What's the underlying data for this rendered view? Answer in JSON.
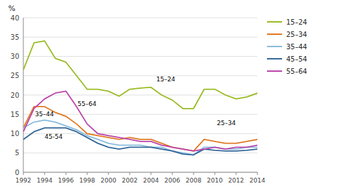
{
  "chart_data": {
    "type": "line",
    "y_label": "%",
    "x": [
      1992,
      1993,
      1994,
      1995,
      1996,
      1997,
      1998,
      1999,
      2000,
      2001,
      2002,
      2003,
      2004,
      2005,
      2006,
      2007,
      2008,
      2009,
      2010,
      2011,
      2012,
      2013,
      2014
    ],
    "series": [
      {
        "name": "15–24",
        "color": "#99BB22",
        "values": [
          26.5,
          33.5,
          34.0,
          29.5,
          28.5,
          25.0,
          21.5,
          21.5,
          21.0,
          19.7,
          21.5,
          21.8,
          22.0,
          20.0,
          18.7,
          16.5,
          16.5,
          21.5,
          21.5,
          20.0,
          19.0,
          19.5,
          20.5
        ]
      },
      {
        "name": "25–34",
        "color": "#E07820",
        "values": [
          11.5,
          17.0,
          17.0,
          15.5,
          14.5,
          12.5,
          10.0,
          9.5,
          9.0,
          8.5,
          9.0,
          8.5,
          8.5,
          7.5,
          6.5,
          6.0,
          5.5,
          8.5,
          8.0,
          7.5,
          7.5,
          8.0,
          8.5
        ]
      },
      {
        "name": "35–44",
        "color": "#88BBDD",
        "values": [
          11.5,
          13.0,
          13.5,
          13.0,
          12.0,
          11.0,
          9.5,
          8.5,
          7.5,
          7.0,
          7.0,
          7.0,
          6.5,
          6.5,
          5.5,
          5.0,
          4.5,
          6.5,
          6.5,
          6.0,
          6.0,
          6.5,
          6.5
        ]
      },
      {
        "name": "45–54",
        "color": "#336699",
        "values": [
          8.5,
          10.5,
          11.5,
          11.5,
          11.5,
          10.5,
          9.0,
          7.5,
          6.5,
          6.0,
          6.5,
          6.5,
          6.5,
          6.0,
          5.5,
          4.7,
          4.5,
          6.0,
          5.7,
          5.5,
          5.5,
          5.7,
          6.0
        ]
      },
      {
        "name": "55–64",
        "color": "#BB44AA",
        "values": [
          10.5,
          16.5,
          19.0,
          20.5,
          21.0,
          17.0,
          12.5,
          10.0,
          9.5,
          9.0,
          8.5,
          8.0,
          8.0,
          7.0,
          6.5,
          6.0,
          5.5,
          6.0,
          6.5,
          6.0,
          6.5,
          6.5,
          7.0
        ]
      }
    ],
    "annotations": [
      {
        "text": "15–24",
        "x": 2004.5,
        "y": 23.2
      },
      {
        "text": "35–44",
        "x": 1993.1,
        "y": 14.2
      },
      {
        "text": "45-54",
        "x": 1994.0,
        "y": 8.3
      },
      {
        "text": "55–64",
        "x": 1997.1,
        "y": 16.8
      },
      {
        "text": "25–34",
        "x": 2010.2,
        "y": 11.8
      }
    ],
    "xlim": [
      1992,
      2014
    ],
    "xticks": [
      1992,
      1994,
      1996,
      1998,
      2000,
      2002,
      2004,
      2006,
      2008,
      2010,
      2012,
      2014
    ],
    "ylim": [
      0,
      40
    ],
    "yticks": [
      0,
      5,
      10,
      15,
      20,
      25,
      30,
      35,
      40
    ],
    "grid": true,
    "legend": "right"
  }
}
